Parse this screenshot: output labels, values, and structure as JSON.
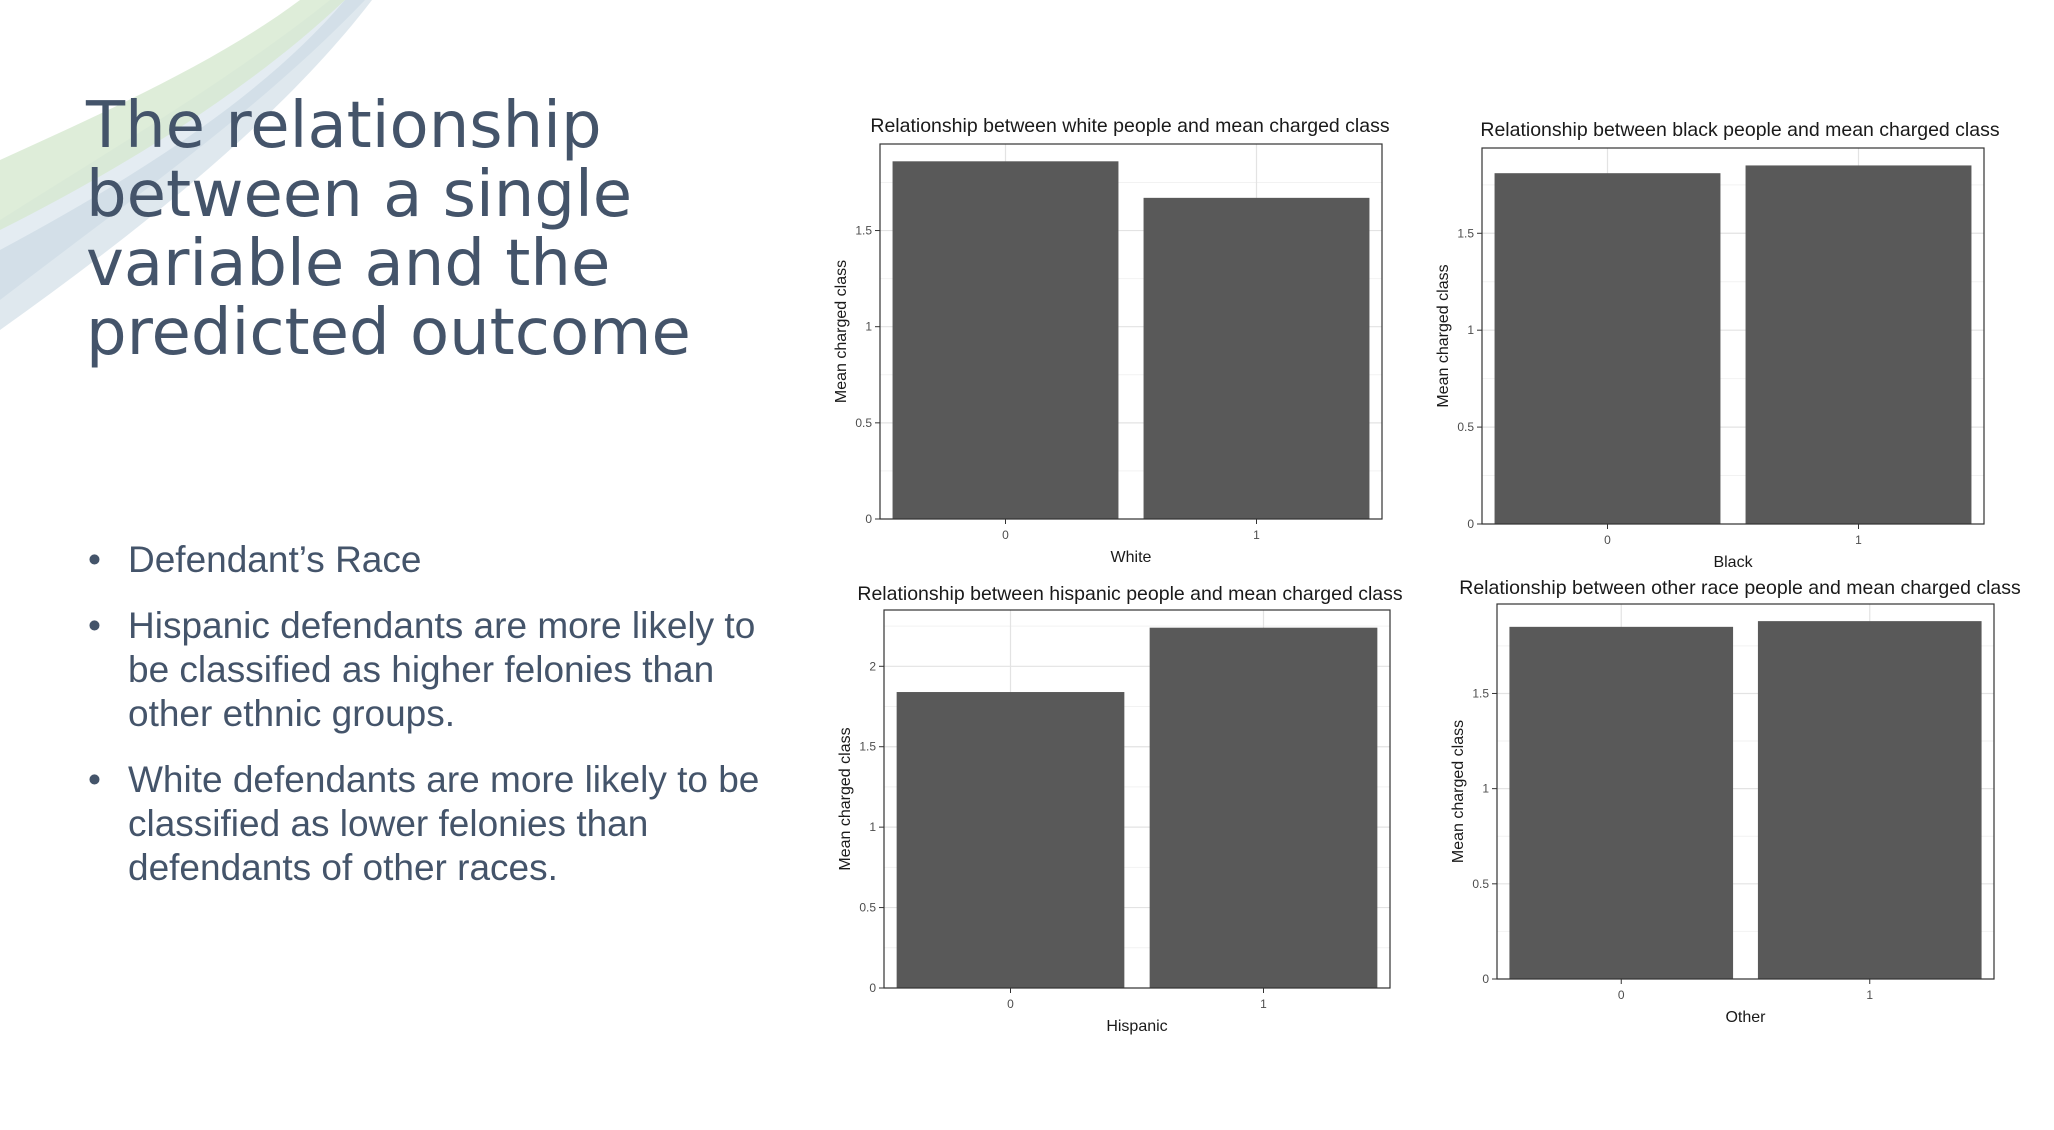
{
  "slide": {
    "title": "The relationship between a single variable and the predicted outcome",
    "bullets": [
      "Defendant’s Race",
      "Hispanic defendants are more likely to be classified as higher felonies than other ethnic groups.",
      "White defendants are more likely to be classified as lower felonies than defendants of other races."
    ],
    "bullet_glyph": "•",
    "colors": {
      "title": "#44546a",
      "text": "#44546a",
      "bar": "#595959",
      "decor_green": "#a9c99a"
    }
  },
  "chart_data": [
    {
      "type": "bar",
      "title": "Relationship between white people and mean charged class",
      "xlabel": "White",
      "ylabel": "Mean charged class",
      "categories": [
        "0",
        "1"
      ],
      "values": [
        1.86,
        1.67
      ],
      "yticks": [
        0,
        0.5,
        1,
        1.5
      ],
      "ytick_labels": [
        "0",
        "0.5",
        "1",
        "1.5"
      ],
      "ylim": [
        0,
        1.95
      ],
      "grid": true
    },
    {
      "type": "bar",
      "title": "Relationship between black people and mean charged class",
      "xlabel": "Black",
      "ylabel": "Mean charged class",
      "categories": [
        "0",
        "1"
      ],
      "values": [
        1.81,
        1.85
      ],
      "yticks": [
        0,
        0.5,
        1,
        1.5
      ],
      "ytick_labels": [
        "0",
        "0.5",
        "1",
        "1.5"
      ],
      "ylim": [
        0,
        1.94
      ],
      "grid": true
    },
    {
      "type": "bar",
      "title": "Relationship between hispanic people and mean charged class",
      "xlabel": "Hispanic",
      "ylabel": "Mean charged class",
      "categories": [
        "0",
        "1"
      ],
      "values": [
        1.84,
        2.24
      ],
      "yticks": [
        0,
        0.5,
        1,
        1.5,
        2
      ],
      "ytick_labels": [
        "0",
        "0.5",
        "1",
        "1.5",
        "2"
      ],
      "ylim": [
        0,
        2.35
      ],
      "grid": true
    },
    {
      "type": "bar",
      "title": "Relationship between other race people and mean charged class",
      "xlabel": "Other",
      "ylabel": "Mean charged class",
      "categories": [
        "0",
        "1"
      ],
      "values": [
        1.85,
        1.88
      ],
      "yticks": [
        0,
        0.5,
        1,
        1.5
      ],
      "ytick_labels": [
        "0",
        "0.5",
        "1",
        "1.5"
      ],
      "ylim": [
        0,
        1.97
      ],
      "grid": true
    }
  ]
}
